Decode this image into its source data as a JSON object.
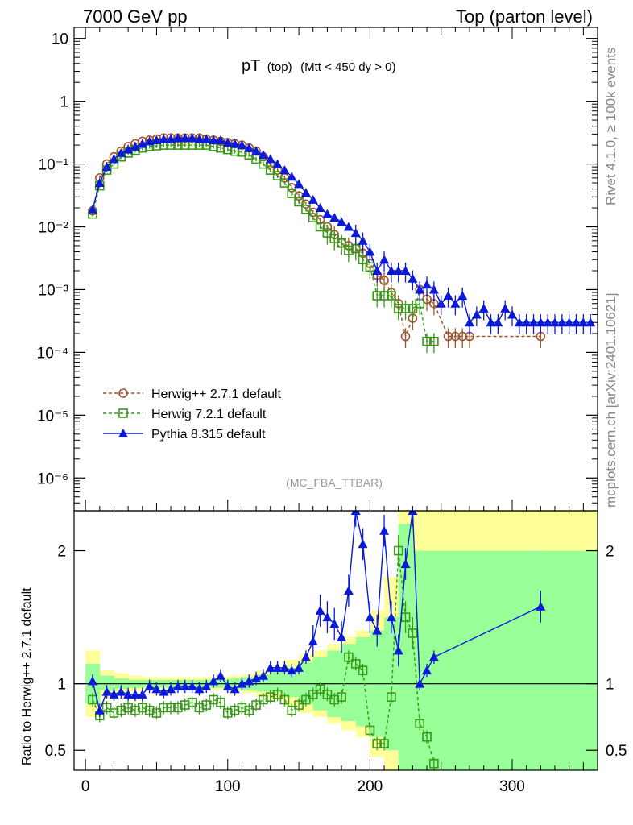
{
  "header": {
    "left": "7000 GeV pp",
    "right": "Top (parton level)"
  },
  "title": {
    "main": "pT",
    "sub1": "(top)",
    "sub2": "(Mtt < 450 dy > 0)"
  },
  "watermark": "(MC_FBA_TTBAR)",
  "side_labels": {
    "rivet": "Rivet 4.1.0, ≥ 100k events",
    "mcplots": "mcplots.cern.ch [arXiv:2401.10621]"
  },
  "colors": {
    "herwig27": "#a0522d",
    "herwig72": "#3a9a1a",
    "pythia": "#0a1ad8",
    "band_yellow": "#ffff99",
    "band_green": "#99ff99"
  },
  "chart_data": [
    {
      "type": "line",
      "title": "pT (top) (Mtt < 450 dy > 0)",
      "xlabel": "",
      "ylabel": "",
      "yscale": "log",
      "xlim": [
        -8,
        360
      ],
      "ylim": [
        3e-07,
        15
      ],
      "y_ticks": [
        {
          "value": 10,
          "label": "10"
        },
        {
          "value": 1,
          "label": "1"
        },
        {
          "value": 0.1,
          "label": "10⁻¹"
        },
        {
          "value": 0.01,
          "label": "10⁻²"
        },
        {
          "value": 0.001,
          "label": "10⁻³"
        },
        {
          "value": 0.0001,
          "label": "10⁻⁴"
        },
        {
          "value": 1e-05,
          "label": "10⁻⁵"
        },
        {
          "value": 1e-06,
          "label": "10⁻⁶"
        }
      ],
      "legend_position": "bottom-left",
      "series": [
        {
          "name": "Herwig++ 2.7.1 default",
          "style": "dashed-open-circle",
          "x": [
            5,
            10,
            15,
            20,
            25,
            30,
            35,
            40,
            45,
            50,
            55,
            60,
            65,
            70,
            75,
            80,
            85,
            90,
            95,
            100,
            105,
            110,
            115,
            120,
            125,
            130,
            135,
            140,
            145,
            150,
            155,
            160,
            165,
            170,
            175,
            180,
            185,
            190,
            195,
            200,
            205,
            210,
            215,
            220,
            225,
            230,
            235,
            240,
            245,
            255,
            260,
            265,
            270,
            320
          ],
          "values": [
            0.018,
            0.06,
            0.1,
            0.13,
            0.16,
            0.19,
            0.21,
            0.23,
            0.24,
            0.25,
            0.26,
            0.26,
            0.26,
            0.26,
            0.26,
            0.26,
            0.25,
            0.24,
            0.23,
            0.22,
            0.21,
            0.2,
            0.18,
            0.16,
            0.13,
            0.1,
            0.08,
            0.06,
            0.042,
            0.031,
            0.023,
            0.017,
            0.013,
            0.01,
            0.0075,
            0.0055,
            0.005,
            0.0045,
            0.0038,
            0.0026,
            0.0017,
            0.0014,
            0.0009,
            0.0006,
            0.00018,
            0.00035,
            0.001,
            0.0007,
            0.0006,
            0.00018,
            0.00018,
            0.00018,
            0.00018,
            0.00018
          ]
        },
        {
          "name": "Herwig 7.2.1 default",
          "style": "dashed-open-square",
          "x": [
            5,
            10,
            15,
            20,
            25,
            30,
            35,
            40,
            45,
            50,
            55,
            60,
            65,
            70,
            75,
            80,
            85,
            90,
            95,
            100,
            105,
            110,
            115,
            120,
            125,
            130,
            135,
            140,
            145,
            150,
            155,
            160,
            165,
            170,
            175,
            180,
            185,
            190,
            195,
            200,
            205,
            210,
            215,
            220,
            225,
            230,
            235,
            240,
            245
          ],
          "values": [
            0.016,
            0.045,
            0.08,
            0.1,
            0.13,
            0.15,
            0.165,
            0.18,
            0.19,
            0.195,
            0.2,
            0.2,
            0.2,
            0.2,
            0.2,
            0.2,
            0.2,
            0.19,
            0.18,
            0.17,
            0.16,
            0.155,
            0.14,
            0.12,
            0.1,
            0.08,
            0.065,
            0.05,
            0.034,
            0.025,
            0.019,
            0.014,
            0.01,
            0.008,
            0.0065,
            0.0055,
            0.0042,
            0.0045,
            0.003,
            0.0023,
            0.0008,
            0.0008,
            0.0008,
            0.0005,
            0.0005,
            0.0005,
            0.0006,
            0.00015,
            0.00015
          ]
        },
        {
          "name": "Pythia 8.315 default",
          "style": "solid-filled-triangle",
          "x": [
            5,
            10,
            15,
            20,
            25,
            30,
            35,
            40,
            45,
            50,
            55,
            60,
            65,
            70,
            75,
            80,
            85,
            90,
            95,
            100,
            105,
            110,
            115,
            120,
            125,
            130,
            135,
            140,
            145,
            150,
            155,
            160,
            165,
            170,
            175,
            180,
            185,
            190,
            195,
            200,
            205,
            210,
            215,
            220,
            225,
            230,
            235,
            240,
            245,
            250,
            255,
            260,
            265,
            270,
            275,
            280,
            285,
            290,
            295,
            300,
            305,
            310,
            315,
            320,
            325,
            330,
            335,
            340,
            345,
            350,
            355
          ],
          "values": [
            0.019,
            0.05,
            0.09,
            0.12,
            0.15,
            0.17,
            0.19,
            0.21,
            0.23,
            0.24,
            0.25,
            0.25,
            0.26,
            0.26,
            0.26,
            0.25,
            0.25,
            0.24,
            0.24,
            0.22,
            0.21,
            0.2,
            0.18,
            0.16,
            0.14,
            0.12,
            0.1,
            0.08,
            0.063,
            0.048,
            0.035,
            0.027,
            0.02,
            0.016,
            0.014,
            0.012,
            0.01,
            0.008,
            0.006,
            0.004,
            0.002,
            0.003,
            0.002,
            0.002,
            0.002,
            0.0015,
            0.001,
            0.0012,
            0.001,
            0.0006,
            0.0008,
            0.0006,
            0.0008,
            0.0003,
            0.0004,
            0.0005,
            0.0003,
            0.0003,
            0.0005,
            0.0004,
            0.0003,
            0.0003,
            0.0003,
            0.0003,
            0.0003,
            0.0003,
            0.0003,
            0.0003,
            0.0003,
            0.0003,
            0.0003
          ]
        }
      ]
    },
    {
      "type": "line",
      "title": "",
      "xlabel": "",
      "ylabel": "Ratio to Herwig++ 2.7.1 default",
      "xlim": [
        -8,
        360
      ],
      "ylim": [
        0.35,
        2.3
      ],
      "x_ticks": [
        0,
        100,
        200,
        300
      ],
      "y_ticks": [
        0.5,
        1,
        2
      ],
      "bands": {
        "x": [
          5,
          15,
          25,
          35,
          45,
          55,
          65,
          75,
          85,
          95,
          105,
          115,
          125,
          135,
          145,
          155,
          165,
          175,
          185,
          195,
          205,
          215,
          225,
          235,
          245,
          255,
          265,
          275,
          285,
          295,
          305,
          315,
          320,
          325,
          335,
          345,
          355
        ],
        "yellow_lo": [
          0.75,
          0.9,
          0.92,
          0.94,
          0.95,
          0.95,
          0.95,
          0.95,
          0.95,
          0.95,
          0.94,
          0.93,
          0.9,
          0.88,
          0.83,
          0.78,
          0.75,
          0.7,
          0.65,
          0.6,
          0.45,
          0.3,
          0.3,
          0.3,
          0.3,
          0.3,
          0.3,
          0.3,
          0.3,
          0.3,
          0.3,
          0.3,
          0.3,
          0.3,
          0.3,
          0.3,
          0.3
        ],
        "yellow_hi": [
          1.25,
          1.1,
          1.08,
          1.06,
          1.05,
          1.05,
          1.05,
          1.05,
          1.05,
          1.05,
          1.06,
          1.07,
          1.1,
          1.12,
          1.18,
          1.22,
          1.25,
          1.3,
          1.35,
          1.4,
          1.55,
          1.8,
          2.3,
          2.3,
          2.3,
          2.3,
          2.3,
          2.3,
          2.3,
          2.3,
          2.3,
          2.3,
          2.3,
          2.3,
          2.3,
          2.3,
          2.3
        ],
        "green_lo": [
          0.85,
          0.95,
          0.96,
          0.97,
          0.97,
          0.97,
          0.97,
          0.97,
          0.97,
          0.97,
          0.96,
          0.95,
          0.94,
          0.93,
          0.9,
          0.85,
          0.8,
          0.75,
          0.72,
          0.68,
          0.6,
          0.5,
          0.3,
          0.3,
          0.3,
          0.3,
          0.3,
          0.3,
          0.3,
          0.3,
          0.3,
          0.3,
          0.3,
          0.3,
          0.3,
          0.3,
          0.3
        ],
        "green_hi": [
          1.15,
          1.06,
          1.04,
          1.03,
          1.03,
          1.03,
          1.03,
          1.03,
          1.03,
          1.03,
          1.04,
          1.05,
          1.07,
          1.09,
          1.12,
          1.16,
          1.2,
          1.25,
          1.3,
          1.35,
          1.4,
          1.5,
          2.2,
          2.0,
          2.0,
          2.0,
          2.0,
          2.0,
          2.0,
          2.0,
          2.0,
          2.0,
          2.0,
          2.0,
          2.0,
          2.0,
          2.0
        ]
      },
      "series": [
        {
          "name": "Herwig 7.2.1 default",
          "x": [
            5,
            10,
            15,
            20,
            25,
            30,
            35,
            40,
            45,
            50,
            55,
            60,
            65,
            70,
            75,
            80,
            85,
            90,
            95,
            100,
            105,
            110,
            115,
            120,
            125,
            130,
            135,
            140,
            145,
            150,
            155,
            160,
            165,
            170,
            175,
            180,
            185,
            190,
            195,
            200,
            205,
            210,
            215,
            220,
            225,
            230,
            235,
            240,
            245
          ],
          "values": [
            0.88,
            0.76,
            0.82,
            0.78,
            0.8,
            0.82,
            0.8,
            0.82,
            0.8,
            0.78,
            0.82,
            0.82,
            0.82,
            0.84,
            0.86,
            0.82,
            0.84,
            0.88,
            0.86,
            0.78,
            0.8,
            0.82,
            0.8,
            0.84,
            0.88,
            0.9,
            0.92,
            0.88,
            0.8,
            0.84,
            0.88,
            0.92,
            0.96,
            0.92,
            0.88,
            0.9,
            1.2,
            1.15,
            1.1,
            0.65,
            0.55,
            0.55,
            0.9,
            2.0,
            1.5,
            1.38,
            0.7,
            0.6,
            0.4
          ]
        },
        {
          "name": "Pythia 8.315 default",
          "x": [
            5,
            10,
            15,
            20,
            25,
            30,
            35,
            40,
            45,
            50,
            55,
            60,
            65,
            70,
            75,
            80,
            85,
            90,
            95,
            100,
            105,
            110,
            115,
            120,
            125,
            130,
            135,
            140,
            145,
            150,
            155,
            160,
            165,
            170,
            175,
            180,
            185,
            190,
            195,
            200,
            205,
            210,
            215,
            220,
            225,
            230,
            235,
            240,
            245,
            320
          ],
          "values": [
            1.02,
            0.8,
            0.94,
            0.92,
            0.94,
            0.92,
            0.92,
            0.92,
            0.98,
            0.96,
            0.94,
            0.96,
            0.98,
            0.98,
            0.98,
            0.96,
            0.98,
            1.02,
            1.06,
            0.98,
            0.96,
            1.0,
            1.02,
            1.04,
            1.06,
            1.12,
            1.12,
            1.12,
            1.1,
            1.12,
            1.2,
            1.32,
            1.55,
            1.5,
            1.45,
            1.35,
            1.7,
            2.3,
            2.05,
            1.5,
            1.4,
            2.15,
            1.5,
            1.25,
            1.9,
            2.3,
            1.0,
            1.1,
            1.2,
            1.58
          ]
        }
      ]
    }
  ]
}
